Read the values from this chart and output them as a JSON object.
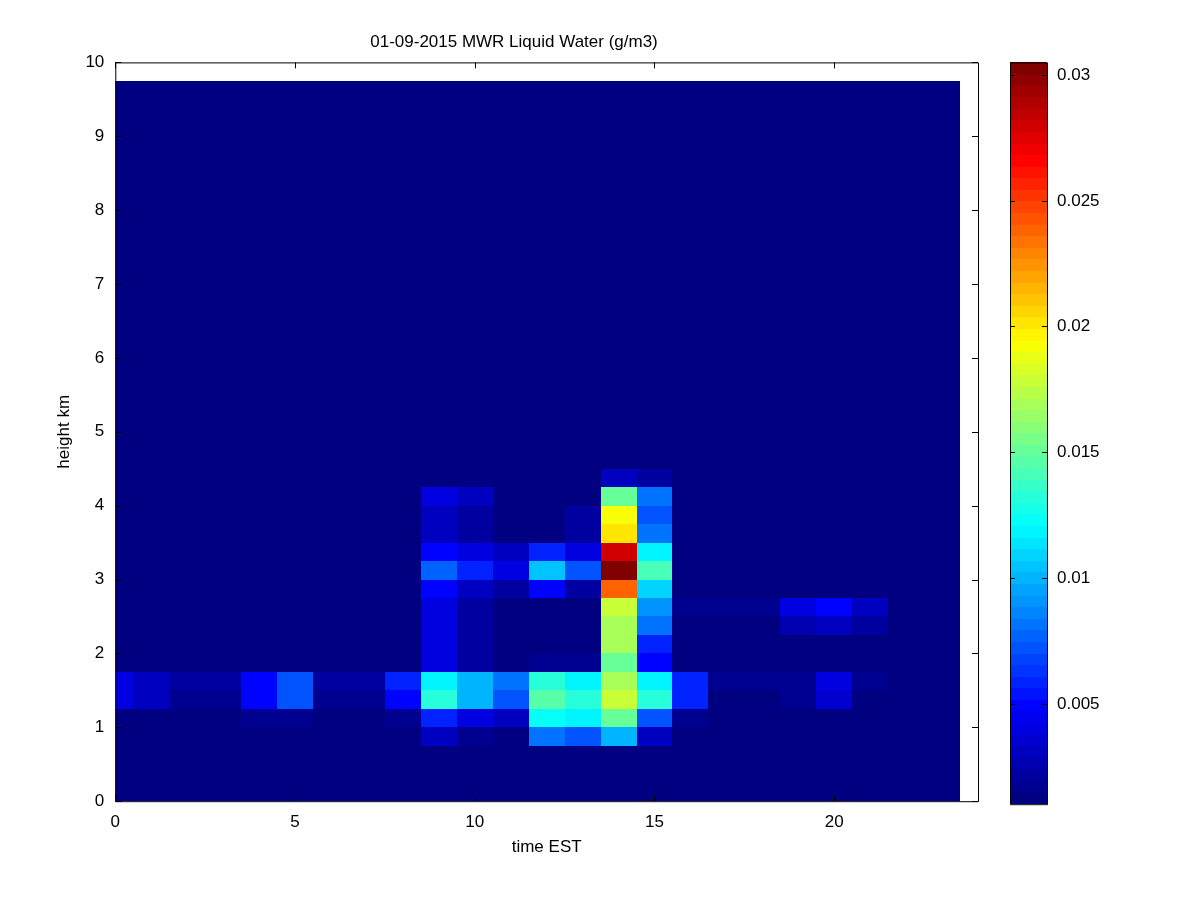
{
  "chart_data": {
    "type": "heatmap",
    "title": "01-09-2015 MWR Liquid Water (g/m3)",
    "xlabel": "time EST",
    "ylabel": "height km",
    "x": [
      0,
      1,
      2,
      3,
      4,
      5,
      6,
      7,
      8,
      9,
      10,
      11,
      12,
      13,
      14,
      15,
      16,
      17,
      18,
      19,
      20,
      21,
      22,
      23
    ],
    "y": [
      9.625,
      9.375,
      9.125,
      8.875,
      8.625,
      8.375,
      8.125,
      7.875,
      7.625,
      7.375,
      7.125,
      6.875,
      6.625,
      6.375,
      6.125,
      5.875,
      5.625,
      5.375,
      5.125,
      4.875,
      4.625,
      4.375,
      4.125,
      3.875,
      3.625,
      3.375,
      3.125,
      2.875,
      2.625,
      2.375,
      2.125,
      1.875,
      1.625,
      1.375,
      1.125,
      0.875,
      0.625,
      0.375,
      0.125
    ],
    "xlim": [
      0,
      24
    ],
    "xticks": [
      0,
      5,
      10,
      15,
      20
    ],
    "ylim": [
      0,
      10
    ],
    "yticks": [
      0,
      1,
      2,
      3,
      4,
      5,
      6,
      7,
      8,
      9,
      10
    ],
    "clim": [
      0.001,
      0.0305
    ],
    "cticks": [
      0.005,
      0.01,
      0.015,
      0.02,
      0.025,
      0.03
    ],
    "cells": [
      [
        0.001,
        0.001,
        0.001,
        0.001,
        0.001,
        0.001,
        0.001,
        0.001,
        0.001,
        0.001,
        0.001,
        0.001,
        0.001,
        0.001,
        0.001,
        0.001,
        0.001,
        0.001,
        0.001,
        0.001,
        0.001,
        0.001,
        0.001,
        0.001
      ],
      [
        0.001,
        0.001,
        0.001,
        0.001,
        0.001,
        0.001,
        0.001,
        0.001,
        0.001,
        0.001,
        0.001,
        0.001,
        0.001,
        0.001,
        0.001,
        0.001,
        0.001,
        0.001,
        0.001,
        0.001,
        0.001,
        0.001,
        0.001,
        0.001
      ],
      [
        0.001,
        0.001,
        0.001,
        0.001,
        0.001,
        0.001,
        0.001,
        0.001,
        0.001,
        0.001,
        0.001,
        0.001,
        0.001,
        0.001,
        0.001,
        0.001,
        0.001,
        0.001,
        0.001,
        0.001,
        0.001,
        0.001,
        0.001,
        0.001
      ],
      [
        0.001,
        0.001,
        0.001,
        0.001,
        0.001,
        0.001,
        0.001,
        0.001,
        0.001,
        0.001,
        0.001,
        0.001,
        0.001,
        0.001,
        0.001,
        0.001,
        0.001,
        0.001,
        0.001,
        0.001,
        0.001,
        0.001,
        0.001,
        0.001
      ],
      [
        0.001,
        0.001,
        0.001,
        0.001,
        0.001,
        0.001,
        0.001,
        0.001,
        0.001,
        0.001,
        0.001,
        0.001,
        0.001,
        0.001,
        0.001,
        0.001,
        0.001,
        0.001,
        0.001,
        0.001,
        0.001,
        0.001,
        0.001,
        0.001
      ],
      [
        0.001,
        0.001,
        0.001,
        0.001,
        0.001,
        0.001,
        0.001,
        0.001,
        0.001,
        0.001,
        0.001,
        0.001,
        0.001,
        0.001,
        0.001,
        0.001,
        0.001,
        0.001,
        0.001,
        0.001,
        0.001,
        0.001,
        0.001,
        0.001
      ],
      [
        0.001,
        0.001,
        0.001,
        0.001,
        0.001,
        0.001,
        0.001,
        0.001,
        0.001,
        0.001,
        0.001,
        0.001,
        0.001,
        0.001,
        0.001,
        0.001,
        0.001,
        0.001,
        0.001,
        0.001,
        0.001,
        0.001,
        0.001,
        0.001
      ],
      [
        0.001,
        0.001,
        0.001,
        0.001,
        0.001,
        0.001,
        0.001,
        0.001,
        0.001,
        0.001,
        0.001,
        0.001,
        0.001,
        0.001,
        0.001,
        0.001,
        0.001,
        0.001,
        0.001,
        0.001,
        0.001,
        0.001,
        0.001,
        0.001
      ],
      [
        0.001,
        0.001,
        0.001,
        0.001,
        0.001,
        0.001,
        0.001,
        0.001,
        0.001,
        0.001,
        0.001,
        0.001,
        0.001,
        0.001,
        0.001,
        0.001,
        0.001,
        0.001,
        0.001,
        0.001,
        0.001,
        0.001,
        0.001,
        0.001
      ],
      [
        0.001,
        0.001,
        0.001,
        0.001,
        0.001,
        0.001,
        0.001,
        0.001,
        0.001,
        0.001,
        0.001,
        0.001,
        0.001,
        0.001,
        0.001,
        0.001,
        0.001,
        0.001,
        0.001,
        0.001,
        0.001,
        0.001,
        0.001,
        0.001
      ],
      [
        0.001,
        0.001,
        0.001,
        0.001,
        0.001,
        0.001,
        0.001,
        0.001,
        0.001,
        0.001,
        0.001,
        0.001,
        0.001,
        0.001,
        0.001,
        0.001,
        0.001,
        0.001,
        0.001,
        0.001,
        0.001,
        0.001,
        0.001,
        0.001
      ],
      [
        0.001,
        0.001,
        0.001,
        0.001,
        0.001,
        0.001,
        0.001,
        0.001,
        0.001,
        0.001,
        0.001,
        0.001,
        0.001,
        0.001,
        0.001,
        0.001,
        0.001,
        0.001,
        0.001,
        0.001,
        0.001,
        0.001,
        0.001,
        0.001
      ],
      [
        0.001,
        0.001,
        0.001,
        0.001,
        0.001,
        0.001,
        0.001,
        0.001,
        0.001,
        0.001,
        0.001,
        0.001,
        0.001,
        0.001,
        0.001,
        0.001,
        0.001,
        0.001,
        0.001,
        0.001,
        0.001,
        0.001,
        0.001,
        0.001
      ],
      [
        0.001,
        0.001,
        0.001,
        0.001,
        0.001,
        0.001,
        0.001,
        0.001,
        0.001,
        0.001,
        0.001,
        0.001,
        0.001,
        0.001,
        0.001,
        0.001,
        0.001,
        0.001,
        0.001,
        0.001,
        0.001,
        0.001,
        0.001,
        0.001
      ],
      [
        0.001,
        0.001,
        0.001,
        0.001,
        0.001,
        0.001,
        0.001,
        0.001,
        0.001,
        0.001,
        0.001,
        0.001,
        0.001,
        0.001,
        0.001,
        0.001,
        0.001,
        0.001,
        0.001,
        0.001,
        0.001,
        0.001,
        0.001,
        0.001
      ],
      [
        0.001,
        0.001,
        0.001,
        0.001,
        0.001,
        0.001,
        0.001,
        0.001,
        0.001,
        0.001,
        0.001,
        0.001,
        0.001,
        0.001,
        0.001,
        0.001,
        0.001,
        0.001,
        0.001,
        0.001,
        0.001,
        0.001,
        0.001,
        0.001
      ],
      [
        0.001,
        0.001,
        0.001,
        0.001,
        0.001,
        0.001,
        0.001,
        0.001,
        0.001,
        0.001,
        0.001,
        0.001,
        0.001,
        0.001,
        0.001,
        0.001,
        0.001,
        0.001,
        0.001,
        0.001,
        0.001,
        0.001,
        0.001,
        0.001
      ],
      [
        0.001,
        0.001,
        0.001,
        0.001,
        0.001,
        0.001,
        0.001,
        0.001,
        0.001,
        0.001,
        0.001,
        0.001,
        0.001,
        0.001,
        0.001,
        0.001,
        0.001,
        0.001,
        0.001,
        0.001,
        0.001,
        0.001,
        0.001,
        0.001
      ],
      [
        0.001,
        0.001,
        0.001,
        0.001,
        0.001,
        0.001,
        0.001,
        0.001,
        0.001,
        0.001,
        0.001,
        0.001,
        0.001,
        0.001,
        0.001,
        0.001,
        0.001,
        0.001,
        0.001,
        0.001,
        0.001,
        0.001,
        0.001,
        0.001
      ],
      [
        0.001,
        0.001,
        0.001,
        0.001,
        0.001,
        0.001,
        0.001,
        0.001,
        0.001,
        0.001,
        0.001,
        0.001,
        0.001,
        0.001,
        0.001,
        0.001,
        0.001,
        0.001,
        0.001,
        0.001,
        0.001,
        0.001,
        0.001,
        0.001
      ],
      [
        0.001,
        0.001,
        0.001,
        0.001,
        0.001,
        0.001,
        0.001,
        0.001,
        0.001,
        0.001,
        0.001,
        0.001,
        0.001,
        0.001,
        0.001,
        0.001,
        0.001,
        0.001,
        0.001,
        0.001,
        0.001,
        0.001,
        0.001,
        0.001
      ],
      [
        0.001,
        0.001,
        0.001,
        0.001,
        0.001,
        0.001,
        0.001,
        0.001,
        0.001,
        0.001,
        0.001,
        0.001,
        0.001,
        0.001,
        0.003,
        0.002,
        0.001,
        0.001,
        0.001,
        0.001,
        0.001,
        0.001,
        0.001,
        0.001
      ],
      [
        0.001,
        0.001,
        0.001,
        0.001,
        0.001,
        0.001,
        0.001,
        0.001,
        0.001,
        0.004,
        0.003,
        0.001,
        0.001,
        0.001,
        0.015,
        0.008,
        0.001,
        0.001,
        0.001,
        0.001,
        0.001,
        0.001,
        0.001,
        0.001
      ],
      [
        0.001,
        0.001,
        0.001,
        0.001,
        0.001,
        0.001,
        0.001,
        0.001,
        0.001,
        0.003,
        0.002,
        0.001,
        0.001,
        0.002,
        0.019,
        0.007,
        0.001,
        0.001,
        0.001,
        0.001,
        0.001,
        0.001,
        0.001,
        0.001
      ],
      [
        0.001,
        0.001,
        0.001,
        0.001,
        0.001,
        0.001,
        0.001,
        0.001,
        0.001,
        0.003,
        0.002,
        0.001,
        0.001,
        0.002,
        0.02,
        0.008,
        0.001,
        0.001,
        0.001,
        0.001,
        0.001,
        0.001,
        0.001,
        0.001
      ],
      [
        0.001,
        0.001,
        0.001,
        0.001,
        0.001,
        0.001,
        0.001,
        0.001,
        0.001,
        0.005,
        0.004,
        0.003,
        0.006,
        0.004,
        0.028,
        0.012,
        0.001,
        0.001,
        0.001,
        0.001,
        0.001,
        0.001,
        0.001,
        0.001
      ],
      [
        0.001,
        0.001,
        0.001,
        0.001,
        0.001,
        0.001,
        0.001,
        0.001,
        0.001,
        0.0075,
        0.006,
        0.004,
        0.0105,
        0.007,
        0.0305,
        0.014,
        0.001,
        0.001,
        0.001,
        0.001,
        0.001,
        0.001,
        0.001,
        0.001
      ],
      [
        0.001,
        0.001,
        0.001,
        0.001,
        0.001,
        0.001,
        0.001,
        0.001,
        0.001,
        0.005,
        0.003,
        0.002,
        0.005,
        0.002,
        0.024,
        0.011,
        0.001,
        0.001,
        0.001,
        0.001,
        0.001,
        0.001,
        0.001,
        0.001
      ],
      [
        0.001,
        0.001,
        0.001,
        0.001,
        0.001,
        0.001,
        0.001,
        0.001,
        0.001,
        0.004,
        0.002,
        0.001,
        0.001,
        0.001,
        0.018,
        0.009,
        0.0015,
        0.0015,
        0.0015,
        0.004,
        0.005,
        0.003,
        0.001,
        0.001
      ],
      [
        0.001,
        0.001,
        0.001,
        0.001,
        0.001,
        0.001,
        0.001,
        0.001,
        0.001,
        0.004,
        0.002,
        0.001,
        0.001,
        0.001,
        0.017,
        0.008,
        0.001,
        0.001,
        0.001,
        0.0025,
        0.003,
        0.002,
        0.001,
        0.001
      ],
      [
        0.001,
        0.001,
        0.001,
        0.001,
        0.001,
        0.001,
        0.001,
        0.001,
        0.001,
        0.004,
        0.002,
        0.001,
        0.001,
        0.001,
        0.017,
        0.006,
        0.001,
        0.001,
        0.001,
        0.001,
        0.001,
        0.001,
        0.001,
        0.001
      ],
      [
        0.001,
        0.001,
        0.001,
        0.001,
        0.001,
        0.001,
        0.001,
        0.001,
        0.001,
        0.004,
        0.002,
        0.001,
        0.0015,
        0.0015,
        0.015,
        0.005,
        0.001,
        0.001,
        0.001,
        0.001,
        0.001,
        0.001,
        0.001,
        0.001
      ],
      [
        0.004,
        0.003,
        0.002,
        0.002,
        0.005,
        0.007,
        0.002,
        0.002,
        0.006,
        0.012,
        0.01,
        0.008,
        0.013,
        0.012,
        0.017,
        0.012,
        0.006,
        0.0015,
        0.0015,
        0.0015,
        0.004,
        0.0015,
        0.001,
        0.001
      ],
      [
        0.004,
        0.003,
        0.0015,
        0.0015,
        0.005,
        0.007,
        0.0015,
        0.0015,
        0.005,
        0.013,
        0.01,
        0.007,
        0.0145,
        0.013,
        0.018,
        0.013,
        0.006,
        0.001,
        0.001,
        0.0015,
        0.0035,
        0.001,
        0.001,
        0.001
      ],
      [
        0.001,
        0.001,
        0.001,
        0.001,
        0.0015,
        0.0015,
        0.001,
        0.001,
        0.0015,
        0.006,
        0.004,
        0.003,
        0.0125,
        0.012,
        0.015,
        0.007,
        0.0015,
        0.001,
        0.001,
        0.001,
        0.001,
        0.001,
        0.001,
        0.001
      ],
      [
        0.001,
        0.001,
        0.001,
        0.001,
        0.001,
        0.001,
        0.001,
        0.001,
        0.001,
        0.003,
        0.0015,
        0.001,
        0.008,
        0.007,
        0.01,
        0.003,
        0.001,
        0.001,
        0.001,
        0.001,
        0.001,
        0.001,
        0.001,
        0.001
      ],
      [
        0.001,
        0.001,
        0.001,
        0.001,
        0.001,
        0.001,
        0.001,
        0.001,
        0.001,
        0.001,
        0.001,
        0.001,
        0.001,
        0.001,
        0.001,
        0.001,
        0.001,
        0.001,
        0.001,
        0.001,
        0.001,
        0.001,
        0.001,
        0.001
      ],
      [
        0.001,
        0.001,
        0.001,
        0.001,
        0.001,
        0.001,
        0.001,
        0.001,
        0.001,
        0.001,
        0.001,
        0.001,
        0.001,
        0.001,
        0.001,
        0.001,
        0.001,
        0.001,
        0.001,
        0.001,
        0.001,
        0.001,
        0.001,
        0.001
      ],
      [
        0.001,
        0.001,
        0.001,
        0.001,
        0.001,
        0.001,
        0.001,
        0.001,
        0.001,
        0.001,
        0.001,
        0.001,
        0.001,
        0.001,
        0.001,
        0.001,
        0.001,
        0.001,
        0.001,
        0.001,
        0.001,
        0.001,
        0.001,
        0.001
      ]
    ]
  }
}
